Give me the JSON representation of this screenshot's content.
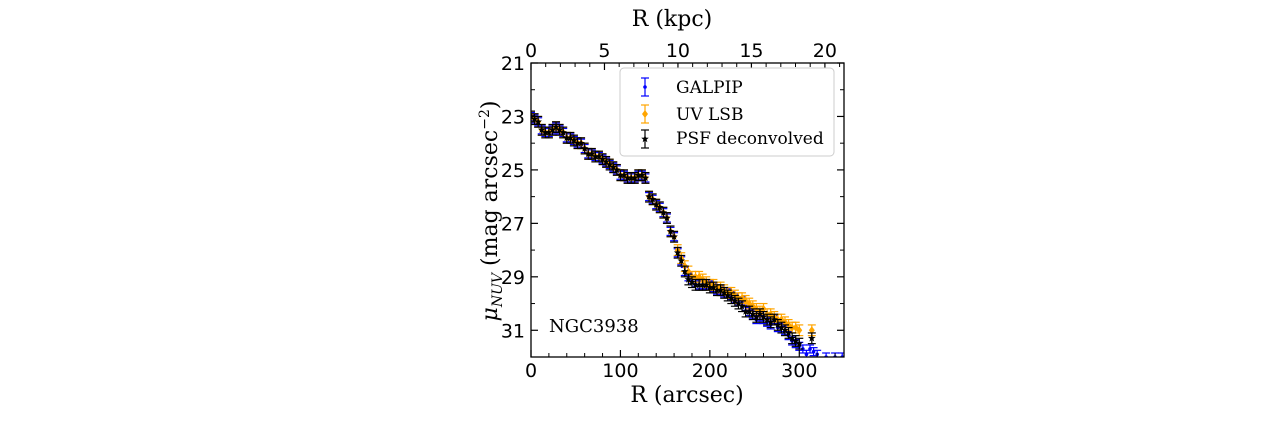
{
  "chart_data": {
    "type": "scatter",
    "title": "",
    "xlabel": "R (arcsec)",
    "xlabel_top": "R (kpc)",
    "ylabel_main": "μ",
    "ylabel_sub": "NUV",
    "ylabel_rest": " (mag arcsec",
    "ylabel_exp": "−2",
    "ylabel_close": ")",
    "xlim": [
      0,
      350
    ],
    "ylim": [
      32.0,
      21.0
    ],
    "y_inverted": true,
    "top_xlim_kpc": [
      0,
      21.3
    ],
    "x_ticks": [
      "0",
      "100",
      "200",
      "300"
    ],
    "x_tick_values": [
      0,
      100,
      200,
      300
    ],
    "top_ticks": [
      "0",
      "5",
      "10",
      "15",
      "20"
    ],
    "top_tick_values": [
      0,
      5,
      10,
      15,
      20
    ],
    "y_ticks": [
      "21",
      "23",
      "25",
      "27",
      "29",
      "31"
    ],
    "y_tick_values": [
      21,
      23,
      25,
      27,
      29,
      31
    ],
    "grid": false,
    "legend_position": "top-right",
    "annotation": "NGC3938",
    "series": [
      {
        "name": "GALPIP",
        "color": "#0000ff",
        "marker": "point",
        "yerr": 0.15,
        "x": [
          0,
          4,
          8,
          12,
          16,
          20,
          24,
          28,
          32,
          36,
          40,
          44,
          48,
          52,
          56,
          60,
          64,
          68,
          72,
          76,
          80,
          84,
          88,
          92,
          96,
          100,
          104,
          108,
          112,
          116,
          120,
          124,
          128,
          132,
          136,
          140,
          144,
          148,
          152,
          156,
          160,
          164,
          168,
          172,
          176,
          180,
          184,
          188,
          192,
          196,
          200,
          204,
          208,
          212,
          216,
          220,
          224,
          228,
          232,
          236,
          240,
          244,
          248,
          252,
          256,
          260,
          264,
          268,
          272,
          276,
          280,
          284,
          288,
          292,
          296,
          300,
          304,
          308,
          312,
          316,
          320,
          330,
          340,
          348
        ],
        "y": [
          23.0,
          23.1,
          23.2,
          23.5,
          23.6,
          23.6,
          23.5,
          23.4,
          23.5,
          23.6,
          23.8,
          23.8,
          23.9,
          24.0,
          24.0,
          24.2,
          24.4,
          24.4,
          24.5,
          24.5,
          24.6,
          24.7,
          24.8,
          24.9,
          25.0,
          25.2,
          25.2,
          25.3,
          25.3,
          25.3,
          25.2,
          25.2,
          25.3,
          26.0,
          26.1,
          26.3,
          26.4,
          26.6,
          26.8,
          27.3,
          27.5,
          28.1,
          28.4,
          28.8,
          29.0,
          29.1,
          29.2,
          29.3,
          29.3,
          29.3,
          29.3,
          29.4,
          29.5,
          29.5,
          29.6,
          29.6,
          29.7,
          29.8,
          29.9,
          29.9,
          30.1,
          30.3,
          30.4,
          30.6,
          30.5,
          30.6,
          30.7,
          30.8,
          30.6,
          30.9,
          30.9,
          31.0,
          31.2,
          31.4,
          31.5,
          31.6,
          31.7,
          31.9,
          31.7,
          31.8,
          31.9,
          32.0,
          32.0,
          32.0
        ]
      },
      {
        "name": "UV LSB",
        "color": "#ffa500",
        "marker": "diamond",
        "yerr": 0.2,
        "x": [
          0,
          4,
          8,
          12,
          16,
          20,
          24,
          28,
          32,
          36,
          40,
          44,
          48,
          52,
          56,
          60,
          64,
          68,
          72,
          76,
          80,
          84,
          88,
          92,
          96,
          100,
          104,
          108,
          112,
          116,
          120,
          124,
          128,
          132,
          136,
          140,
          144,
          148,
          152,
          156,
          160,
          164,
          168,
          172,
          176,
          180,
          184,
          188,
          192,
          196,
          200,
          204,
          208,
          212,
          216,
          220,
          224,
          228,
          232,
          236,
          240,
          244,
          248,
          252,
          256,
          260,
          264,
          268,
          272,
          276,
          280,
          284,
          288,
          292,
          296,
          300,
          314
        ],
        "y": [
          23.0,
          23.1,
          23.2,
          23.5,
          23.6,
          23.6,
          23.5,
          23.4,
          23.5,
          23.6,
          23.8,
          23.8,
          23.9,
          24.0,
          24.0,
          24.2,
          24.4,
          24.4,
          24.5,
          24.5,
          24.6,
          24.7,
          24.8,
          24.9,
          25.0,
          25.2,
          25.2,
          25.3,
          25.3,
          25.3,
          25.2,
          25.2,
          25.3,
          26.0,
          26.1,
          26.3,
          26.4,
          26.6,
          26.8,
          27.3,
          27.5,
          28.0,
          28.3,
          28.6,
          28.8,
          29.0,
          29.0,
          29.0,
          29.1,
          29.2,
          29.3,
          29.3,
          29.4,
          29.4,
          29.5,
          29.6,
          29.6,
          29.7,
          29.8,
          29.8,
          29.9,
          30.0,
          30.1,
          30.2,
          30.3,
          30.2,
          30.4,
          30.4,
          30.5,
          30.6,
          30.6,
          30.7,
          30.8,
          30.9,
          30.9,
          31.0,
          31.0
        ]
      },
      {
        "name": "PSF deconvolved",
        "color": "#000000",
        "marker": "star",
        "yerr": 0.2,
        "x": [
          0,
          4,
          8,
          12,
          16,
          20,
          24,
          28,
          32,
          36,
          40,
          44,
          48,
          52,
          56,
          60,
          64,
          68,
          72,
          76,
          80,
          84,
          88,
          92,
          96,
          100,
          104,
          108,
          112,
          116,
          120,
          124,
          128,
          132,
          136,
          140,
          144,
          148,
          152,
          156,
          160,
          164,
          168,
          172,
          176,
          180,
          184,
          188,
          192,
          196,
          200,
          204,
          208,
          212,
          216,
          220,
          224,
          228,
          232,
          236,
          240,
          244,
          248,
          252,
          256,
          260,
          264,
          268,
          272,
          276,
          280,
          284,
          288,
          292,
          296,
          300,
          314
        ],
        "y": [
          23.0,
          23.1,
          23.2,
          23.5,
          23.6,
          23.6,
          23.5,
          23.4,
          23.5,
          23.6,
          23.8,
          23.8,
          23.9,
          24.0,
          24.0,
          24.2,
          24.4,
          24.4,
          24.5,
          24.5,
          24.6,
          24.7,
          24.8,
          24.9,
          25.0,
          25.2,
          25.2,
          25.3,
          25.3,
          25.3,
          25.2,
          25.2,
          25.3,
          26.0,
          26.1,
          26.3,
          26.4,
          26.6,
          26.8,
          27.3,
          27.5,
          28.1,
          28.4,
          28.8,
          29.1,
          29.2,
          29.3,
          29.3,
          29.3,
          29.3,
          29.4,
          29.4,
          29.5,
          29.5,
          29.6,
          29.7,
          29.8,
          29.9,
          30.0,
          30.1,
          30.3,
          30.3,
          30.4,
          30.5,
          30.4,
          30.5,
          30.6,
          30.7,
          30.6,
          30.8,
          30.9,
          31.0,
          31.1,
          31.3,
          31.4,
          31.5,
          31.3
        ]
      }
    ]
  }
}
